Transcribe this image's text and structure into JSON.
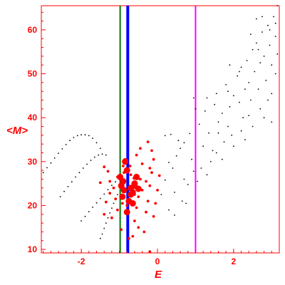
{
  "chart_data": {
    "type": "scatter",
    "title": "",
    "xlabel": "E",
    "ylabel": "<M>",
    "xlim": [
      -3.05,
      3.2
    ],
    "ylim": [
      9.2,
      65.5
    ],
    "x_ticks": [
      -2,
      0,
      2
    ],
    "y_ticks": [
      10,
      20,
      30,
      40,
      50,
      60
    ],
    "grid": false,
    "legend": "none",
    "vertical_lines": [
      {
        "x": -0.98,
        "color": "#007700"
      },
      {
        "x": -0.78,
        "color": "#0000ff"
      },
      {
        "x": 1.0,
        "color": "#ff00ff"
      }
    ],
    "series": [
      {
        "color": "#000000",
        "marker": "small-dot",
        "points": [
          [
            -3.0,
            27.5
          ],
          [
            -2.9,
            28.6
          ],
          [
            -2.8,
            29.7
          ],
          [
            -2.7,
            30.8
          ],
          [
            -2.6,
            31.9
          ],
          [
            -2.5,
            32.9
          ],
          [
            -2.4,
            33.9
          ],
          [
            -2.3,
            34.8
          ],
          [
            -2.2,
            35.5
          ],
          [
            -2.1,
            35.9
          ],
          [
            -2.0,
            36.1
          ],
          [
            -1.9,
            36.1
          ],
          [
            -1.8,
            35.9
          ],
          [
            -1.7,
            35.3
          ],
          [
            -1.6,
            34.3
          ],
          [
            -1.5,
            33.0
          ],
          [
            -2.55,
            22.0
          ],
          [
            -2.45,
            23.2
          ],
          [
            -2.35,
            24.3
          ],
          [
            -2.25,
            25.4
          ],
          [
            -2.15,
            26.5
          ],
          [
            -2.05,
            27.5
          ],
          [
            -1.95,
            28.5
          ],
          [
            -1.85,
            29.4
          ],
          [
            -1.75,
            30.3
          ],
          [
            -1.65,
            31.0
          ],
          [
            -1.55,
            31.5
          ],
          [
            -1.45,
            31.7
          ],
          [
            -1.35,
            31.5
          ],
          [
            -2.0,
            16.5
          ],
          [
            -1.9,
            17.5
          ],
          [
            -1.8,
            18.6
          ],
          [
            -1.7,
            19.6
          ],
          [
            -1.6,
            20.6
          ],
          [
            -1.5,
            21.6
          ],
          [
            -1.4,
            22.6
          ],
          [
            -1.3,
            23.6
          ],
          [
            -1.2,
            24.6
          ],
          [
            -1.1,
            25.4
          ],
          [
            -1.5,
            12.5
          ],
          [
            -1.45,
            13.5
          ],
          [
            -1.4,
            14.8
          ],
          [
            -1.35,
            16.0
          ],
          [
            -1.3,
            17.2
          ],
          [
            -1.25,
            18.3
          ],
          [
            -1.2,
            19.4
          ],
          [
            -1.15,
            20.5
          ],
          [
            -1.1,
            21.5
          ],
          [
            -1.05,
            22.5
          ],
          [
            0.1,
            22.5
          ],
          [
            0.2,
            25.8
          ],
          [
            0.3,
            29.8
          ],
          [
            0.4,
            28.5
          ],
          [
            0.5,
            31.3
          ],
          [
            0.6,
            33.0
          ],
          [
            0.7,
            26.0
          ],
          [
            0.8,
            24.8
          ],
          [
            0.9,
            30.5
          ],
          [
            0.95,
            27.8
          ],
          [
            0.2,
            35.9
          ],
          [
            0.35,
            36.2
          ],
          [
            0.55,
            34.8
          ],
          [
            0.7,
            34.3
          ],
          [
            0.85,
            36.4
          ],
          [
            0.45,
            23.0
          ],
          [
            0.65,
            21.0
          ],
          [
            0.75,
            20.5
          ],
          [
            0.3,
            19.0
          ],
          [
            0.45,
            17.8
          ],
          [
            1.1,
            38.5
          ],
          [
            1.2,
            33.5
          ],
          [
            1.25,
            41.5
          ],
          [
            1.35,
            36.5
          ],
          [
            1.4,
            30.0
          ],
          [
            1.5,
            43.0
          ],
          [
            1.55,
            45.5
          ],
          [
            1.6,
            39.0
          ],
          [
            1.7,
            41.0
          ],
          [
            1.75,
            34.5
          ],
          [
            1.8,
            47.5
          ],
          [
            1.85,
            38.0
          ],
          [
            1.9,
            42.5
          ],
          [
            1.95,
            36.0
          ],
          [
            2.0,
            45.0
          ],
          [
            2.1,
            49.5
          ],
          [
            2.15,
            43.5
          ],
          [
            2.2,
            51.5
          ],
          [
            2.25,
            40.0
          ],
          [
            2.3,
            46.5
          ],
          [
            2.35,
            53.0
          ],
          [
            2.4,
            48.0
          ],
          [
            2.45,
            44.0
          ],
          [
            2.5,
            55.5
          ],
          [
            2.55,
            50.5
          ],
          [
            2.6,
            57.0
          ],
          [
            2.65,
            46.5
          ],
          [
            2.7,
            52.5
          ],
          [
            2.75,
            59.5
          ],
          [
            2.8,
            54.0
          ],
          [
            2.85,
            48.5
          ],
          [
            2.9,
            61.0
          ],
          [
            2.95,
            56.5
          ],
          [
            3.0,
            52.0
          ],
          [
            3.05,
            63.0
          ],
          [
            3.1,
            58.5
          ],
          [
            3.15,
            65.5
          ],
          [
            3.15,
            54.5
          ],
          [
            2.6,
            62.5
          ],
          [
            2.4,
            40.5
          ],
          [
            2.9,
            44.0
          ],
          [
            3.1,
            50.0
          ],
          [
            1.3,
            44.5
          ],
          [
            1.6,
            36.5
          ],
          [
            1.9,
            52.0
          ],
          [
            2.2,
            37.0
          ],
          [
            2.7,
            42.0
          ],
          [
            3.0,
            45.5
          ],
          [
            1.45,
            32.5
          ],
          [
            1.15,
            28.5
          ],
          [
            1.05,
            25.5
          ],
          [
            1.3,
            27.0
          ],
          [
            1.7,
            30.5
          ],
          [
            2.0,
            33.5
          ],
          [
            2.3,
            35.0
          ],
          [
            2.5,
            38.0
          ],
          [
            2.8,
            40.0
          ],
          [
            3.0,
            39.0
          ],
          [
            1.0,
            42.0
          ],
          [
            0.95,
            44.5
          ],
          [
            1.55,
            32.0
          ],
          [
            1.85,
            46.0
          ],
          [
            2.15,
            50.5
          ],
          [
            2.45,
            59.0
          ],
          [
            2.65,
            55.5
          ],
          [
            2.95,
            60.0
          ],
          [
            3.1,
            61.5
          ],
          [
            2.75,
            63.0
          ]
        ]
      },
      {
        "color": "#ff0000",
        "marker": "dot",
        "points": [
          [
            -1.5,
            25.2
          ],
          [
            -1.35,
            20.8
          ],
          [
            -1.25,
            22.8
          ],
          [
            -1.3,
            27.8
          ],
          [
            -1.4,
            28.8
          ],
          [
            -1.4,
            18.0
          ],
          [
            -1.2,
            17.2
          ],
          [
            -1.15,
            24.0
          ],
          [
            -1.1,
            21.5
          ],
          [
            -1.05,
            19.0
          ],
          [
            -0.9,
            29.0
          ],
          [
            -0.85,
            30.5
          ],
          [
            -0.8,
            20.0
          ],
          [
            -0.7,
            27.0
          ],
          [
            -0.65,
            24.5
          ],
          [
            -0.6,
            16.5
          ],
          [
            -0.55,
            19.5
          ],
          [
            -0.5,
            22.0
          ],
          [
            -0.45,
            26.0
          ],
          [
            -0.4,
            29.5
          ],
          [
            -0.35,
            14.0
          ],
          [
            -0.3,
            18.5
          ],
          [
            -0.25,
            21.0
          ],
          [
            -0.2,
            24.5
          ],
          [
            -0.15,
            27.5
          ],
          [
            -0.1,
            30.5
          ],
          [
            -0.05,
            20.5
          ],
          [
            0.0,
            23.5
          ],
          [
            0.05,
            26.8
          ],
          [
            -0.15,
            32.5
          ],
          [
            -0.25,
            34.5
          ],
          [
            -0.45,
            33.0
          ],
          [
            -0.55,
            31.5
          ],
          [
            -0.5,
            15.0
          ],
          [
            -0.65,
            13.0
          ],
          [
            -0.75,
            12.5
          ],
          [
            -0.1,
            17.5
          ],
          [
            -0.2,
            9.5
          ],
          [
            -0.95,
            14.5
          ],
          [
            -0.6,
            22.5
          ],
          [
            -0.4,
            23.5
          ],
          [
            -0.3,
            25.5
          ],
          [
            -0.2,
            28.5
          ],
          [
            -1.25,
            25.5
          ],
          [
            -1.05,
            26.5
          ],
          [
            -0.88,
            27.5
          ],
          [
            -0.72,
            29.0
          ],
          [
            -0.62,
            26.2
          ],
          [
            -0.85,
            23.3
          ],
          [
            -0.92,
            20.5
          ]
        ]
      },
      {
        "color": "#ff0000",
        "marker": "large-dot",
        "points": [
          [
            -0.98,
            26.5
          ],
          [
            -0.95,
            24.5
          ],
          [
            -0.9,
            25.5
          ],
          [
            -0.92,
            22.0
          ],
          [
            -0.88,
            23.5
          ],
          [
            -0.85,
            30.0
          ],
          [
            -0.8,
            28.0
          ],
          [
            -0.8,
            18.5
          ],
          [
            -0.75,
            21.0
          ],
          [
            -0.7,
            22.5
          ],
          [
            -0.7,
            24.0
          ],
          [
            -0.65,
            23.0
          ],
          [
            -0.6,
            25.0
          ],
          [
            -0.65,
            20.5
          ],
          [
            -0.6,
            24.5
          ],
          [
            -0.55,
            26.5
          ],
          [
            -0.5,
            23.8
          ]
        ]
      }
    ]
  }
}
